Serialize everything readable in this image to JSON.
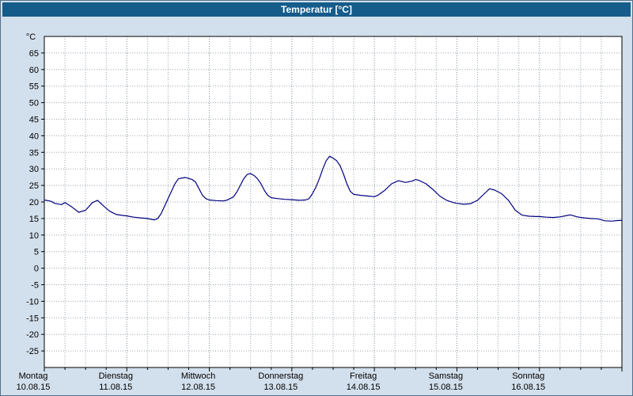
{
  "window": {
    "title": "Temperatur [°C]",
    "colors": {
      "titlebar": "#155c8b",
      "title_text": "#ffffff",
      "background": "#d2dfec",
      "plot_background": "#ffffff",
      "plot_border": "#000000",
      "grid_minor": "#9aa5af",
      "grid_day": "#7d8a96",
      "line": "#000080"
    }
  },
  "chart_data": {
    "type": "line",
    "title": "Temperatur [°C]",
    "ylabel": "°C",
    "ylim": [
      -30,
      70
    ],
    "yticks": [
      65,
      60,
      55,
      50,
      45,
      40,
      35,
      30,
      25,
      20,
      15,
      10,
      5,
      0,
      -5,
      -10,
      -15,
      -20,
      -25
    ],
    "grid": "dotted",
    "legend": "none",
    "x_unit": "hours",
    "x_range_hours": [
      0,
      168
    ],
    "minor_vgrid_hours": 6,
    "day_ticks_hours": [
      0,
      24,
      48,
      72,
      96,
      120,
      144,
      168
    ],
    "days": [
      {
        "name": "Montag",
        "date": "10.08.15"
      },
      {
        "name": "Dienstag",
        "date": "11.08.15"
      },
      {
        "name": "Mittwoch",
        "date": "12.08.15"
      },
      {
        "name": "Donnerstag",
        "date": "13.08.15"
      },
      {
        "name": "Freitag",
        "date": "14.08.15"
      },
      {
        "name": "Samstag",
        "date": "15.08.15"
      },
      {
        "name": "Sonntag",
        "date": "16.08.15"
      }
    ],
    "series": [
      {
        "name": "Temperatur",
        "color": "#000080",
        "x": [
          0,
          2,
          3,
          5,
          6,
          8,
          10,
          12,
          14,
          15.5,
          17,
          19,
          21,
          23,
          24,
          26,
          28,
          30,
          32,
          33,
          34,
          36,
          38,
          39,
          41,
          43,
          44,
          45,
          46,
          47,
          48,
          50,
          52,
          53,
          55,
          56,
          57,
          58,
          59,
          60,
          61,
          62,
          63,
          64,
          65,
          66,
          68,
          70,
          72,
          74,
          76,
          77,
          78,
          79,
          80,
          81,
          82,
          83,
          84,
          85,
          86,
          87,
          88,
          89,
          90,
          92,
          94,
          96,
          97,
          99,
          101,
          103,
          105,
          107,
          108,
          109,
          111,
          113,
          115,
          117,
          119,
          120,
          122,
          124,
          126,
          128,
          129.5,
          131,
          133,
          135,
          137,
          139,
          141,
          143,
          144,
          146,
          148,
          150,
          152,
          153,
          155,
          157,
          159,
          161,
          163,
          165,
          167,
          168
        ],
        "values": [
          20.6,
          20.2,
          19.6,
          19.2,
          19.8,
          18.5,
          16.9,
          17.5,
          19.8,
          20.5,
          19.0,
          17.2,
          16.2,
          15.9,
          15.8,
          15.4,
          15.2,
          15.0,
          14.6,
          15.0,
          16.5,
          21.0,
          25.5,
          27.0,
          27.4,
          26.8,
          26.0,
          24.0,
          22.0,
          21.0,
          20.6,
          20.4,
          20.3,
          20.5,
          21.5,
          23.0,
          25.0,
          27.0,
          28.3,
          28.6,
          28.0,
          27.0,
          25.5,
          23.5,
          22.0,
          21.3,
          21.0,
          20.8,
          20.7,
          20.5,
          20.6,
          21.0,
          22.5,
          24.5,
          27.0,
          30.0,
          32.5,
          33.8,
          33.2,
          32.5,
          31.0,
          28.5,
          25.5,
          23.2,
          22.3,
          22.0,
          21.8,
          21.6,
          22.0,
          23.5,
          25.5,
          26.4,
          25.9,
          26.3,
          26.8,
          26.5,
          25.5,
          23.8,
          21.8,
          20.5,
          19.8,
          19.6,
          19.3,
          19.5,
          20.5,
          22.5,
          24.0,
          23.6,
          22.5,
          20.5,
          17.5,
          16.0,
          15.7,
          15.6,
          15.6,
          15.4,
          15.3,
          15.5,
          15.9,
          16.1,
          15.5,
          15.2,
          15.0,
          14.9,
          14.3,
          14.2,
          14.4,
          14.4
        ]
      }
    ]
  }
}
